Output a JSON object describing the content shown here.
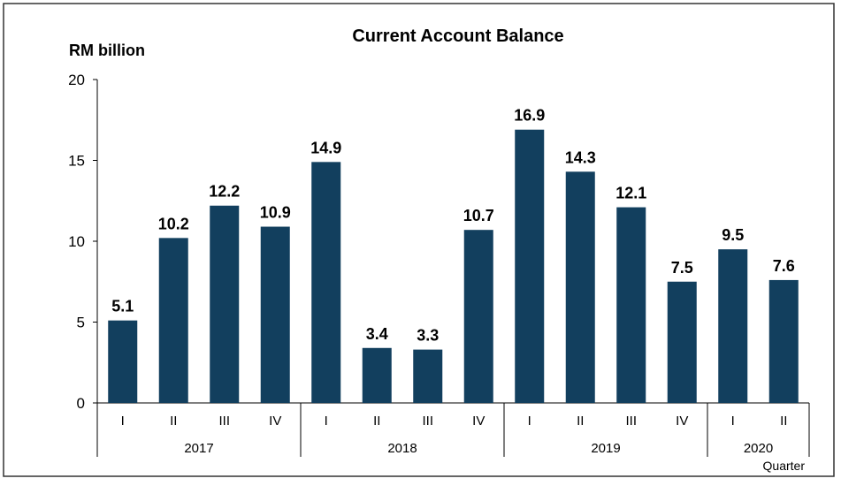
{
  "chart_data": {
    "type": "bar",
    "title": "Current Account Balance",
    "ylabel": "RM billion",
    "xlabel": "Quarter",
    "ylim": [
      0,
      20
    ],
    "yticks": [
      0,
      5,
      10,
      15,
      20
    ],
    "grid": false,
    "bar_color": "#123f5e",
    "groups": [
      {
        "name": "2017",
        "categories": [
          "I",
          "II",
          "III",
          "IV"
        ],
        "values": [
          5.1,
          10.2,
          12.2,
          10.9
        ]
      },
      {
        "name": "2018",
        "categories": [
          "I",
          "II",
          "III",
          "IV"
        ],
        "values": [
          14.9,
          3.4,
          3.3,
          10.7
        ]
      },
      {
        "name": "2019",
        "categories": [
          "I",
          "II",
          "III",
          "IV"
        ],
        "values": [
          16.9,
          14.3,
          12.1,
          7.5
        ]
      },
      {
        "name": "2020",
        "categories": [
          "I",
          "II"
        ],
        "values": [
          9.5,
          7.6
        ]
      }
    ]
  }
}
